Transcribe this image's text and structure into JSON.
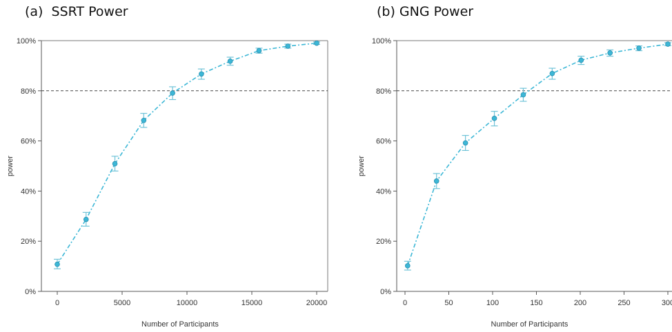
{
  "chart_data": [
    {
      "type": "line",
      "title": "(a)  SSRT Power",
      "xlabel": "Number of Participants",
      "ylabel": "power",
      "xlim": [
        0,
        20000
      ],
      "ylim": [
        0,
        100
      ],
      "x_ticks": [
        0,
        5000,
        10000,
        15000,
        20000
      ],
      "x_tick_labels": [
        "0",
        "5000",
        "10000",
        "15000",
        "20000"
      ],
      "y_ticks": [
        0,
        20,
        40,
        60,
        80,
        100
      ],
      "y_tick_labels": [
        "0%",
        "20%",
        "40%",
        "60%",
        "80%",
        "100%"
      ],
      "reference_line": 80,
      "color": "#3cb7d6",
      "series": [
        {
          "x": [
            0,
            2222,
            4444,
            6667,
            8889,
            11111,
            13333,
            15556,
            17778,
            20000
          ],
          "y": [
            10.8,
            28.7,
            50.9,
            68.2,
            79.1,
            86.7,
            91.8,
            96.0,
            97.8,
            99.0
          ],
          "err_low": [
            9.0,
            26.0,
            48.0,
            65.4,
            76.5,
            84.6,
            90.2,
            95.0,
            97.0,
            98.5
          ],
          "err_high": [
            12.8,
            31.5,
            53.9,
            71.0,
            81.6,
            88.7,
            93.4,
            97.0,
            98.6,
            99.5
          ]
        }
      ]
    },
    {
      "type": "line",
      "title": "(b) GNG Power",
      "xlabel": "Number of Participants",
      "ylabel": "power",
      "xlim": [
        0,
        300
      ],
      "ylim": [
        0,
        100
      ],
      "x_ticks": [
        0,
        50,
        100,
        150,
        200,
        250,
        300
      ],
      "x_tick_labels": [
        "0",
        "50",
        "100",
        "150",
        "200",
        "250",
        "300"
      ],
      "y_ticks": [
        0,
        20,
        40,
        60,
        80,
        100
      ],
      "y_tick_labels": [
        "0%",
        "20%",
        "40%",
        "60%",
        "80%",
        "100%"
      ],
      "reference_line": 80,
      "color": "#3cb7d6",
      "series": [
        {
          "x": [
            3,
            36,
            69,
            102,
            135,
            168,
            201,
            234,
            267,
            300
          ],
          "y": [
            10.2,
            44.0,
            59.2,
            69.0,
            78.4,
            86.9,
            92.2,
            95.1,
            97.0,
            98.6
          ],
          "err_low": [
            8.5,
            41.0,
            56.2,
            66.0,
            75.8,
            84.6,
            90.5,
            93.8,
            96.0,
            98.0
          ],
          "err_high": [
            12.0,
            47.0,
            62.2,
            71.8,
            81.0,
            89.0,
            93.8,
            96.3,
            97.9,
            99.2
          ]
        }
      ]
    }
  ]
}
